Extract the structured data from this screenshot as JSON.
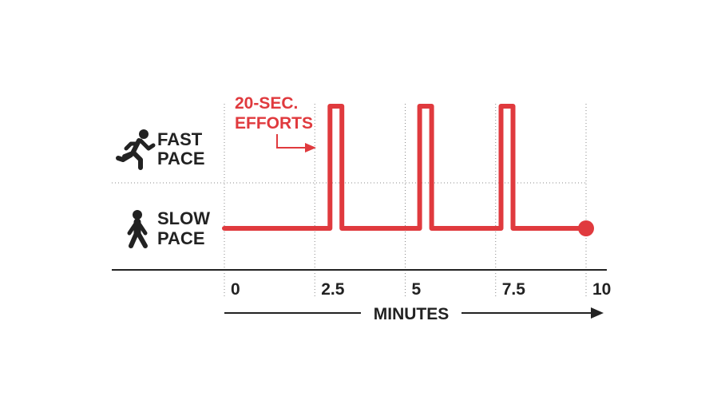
{
  "chart_data": {
    "type": "line",
    "xlabel": "MINUTES",
    "x_ticks": [
      "0",
      "2.5",
      "5",
      "7.5",
      "10"
    ],
    "xlim": [
      0,
      10
    ],
    "levels": [
      {
        "name": "SLOW PACE",
        "lines": [
          "SLOW",
          "PACE"
        ],
        "icon": "walking-person-icon"
      },
      {
        "name": "FAST PACE",
        "lines": [
          "FAST",
          "PACE"
        ],
        "icon": "running-person-icon"
      }
    ],
    "series": [
      {
        "color": "#e03a3e",
        "points": [
          {
            "x": 0,
            "level": "SLOW PACE"
          },
          {
            "x": 2.92,
            "level": "SLOW PACE"
          },
          {
            "x": 2.92,
            "level": "FAST PACE"
          },
          {
            "x": 3.25,
            "level": "FAST PACE"
          },
          {
            "x": 3.25,
            "level": "SLOW PACE"
          },
          {
            "x": 5.4,
            "level": "SLOW PACE"
          },
          {
            "x": 5.4,
            "level": "FAST PACE"
          },
          {
            "x": 5.73,
            "level": "FAST PACE"
          },
          {
            "x": 5.73,
            "level": "SLOW PACE"
          },
          {
            "x": 7.65,
            "level": "SLOW PACE"
          },
          {
            "x": 7.65,
            "level": "FAST PACE"
          },
          {
            "x": 7.98,
            "level": "FAST PACE"
          },
          {
            "x": 7.98,
            "level": "SLOW PACE"
          },
          {
            "x": 10,
            "level": "SLOW PACE"
          }
        ],
        "end_marker": {
          "x": 10,
          "level": "SLOW PACE"
        }
      }
    ],
    "annotation": {
      "lines": [
        "20-SEC.",
        "EFFORTS"
      ],
      "color": "#e03a3e"
    },
    "gridlines": true
  }
}
